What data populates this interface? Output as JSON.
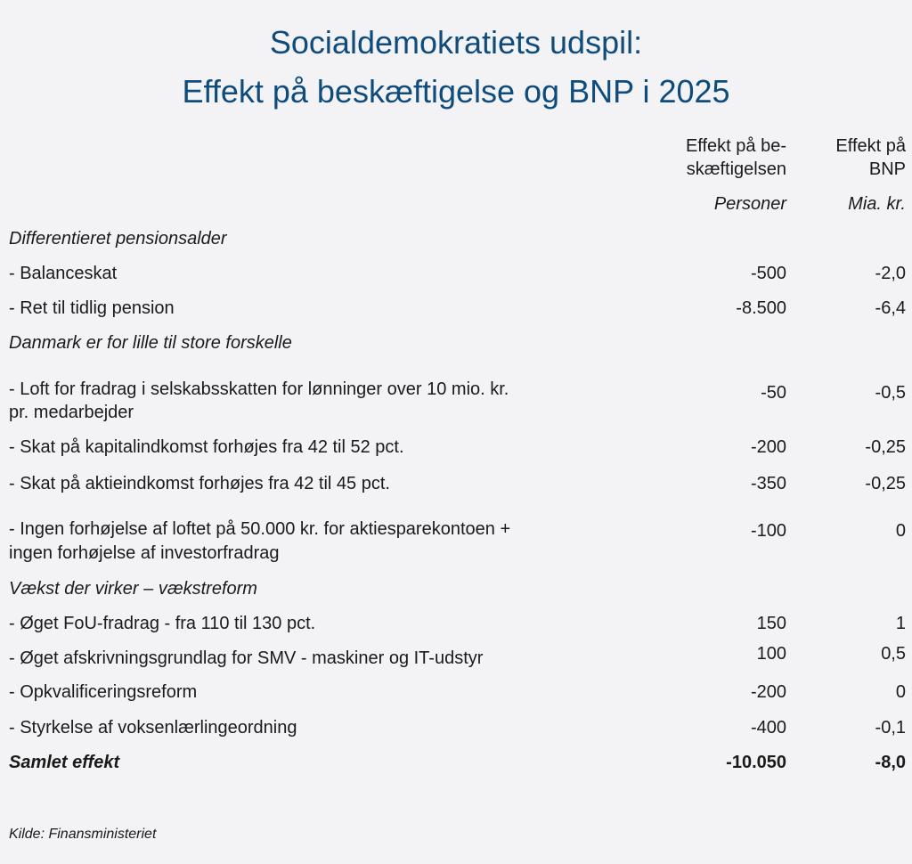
{
  "title": [
    "Socialdemokratiets udspil:",
    "Effekt på beskæftigelse og BNP i 2025"
  ],
  "columns": [
    {
      "header": [
        "Effekt på be-",
        "skæftigelsen"
      ],
      "unit": "Personer"
    },
    {
      "header": [
        "Effekt på",
        "BNP"
      ],
      "unit": "Mia. kr."
    }
  ],
  "rows": [
    {
      "type": "section",
      "label": [
        "Differentieret pensionsalder"
      ]
    },
    {
      "type": "item",
      "label": [
        "- Balanceskat"
      ],
      "employment": "-500",
      "gdp": "-2,0"
    },
    {
      "type": "item",
      "label": [
        "- Ret til tidlig pension"
      ],
      "employment": "-8.500",
      "gdp": "-6,4"
    },
    {
      "type": "section",
      "label": [
        "Danmark er for lille til store forskelle"
      ]
    },
    {
      "type": "item",
      "label": [
        "- Loft for fradrag i selskabsskatten for lønninger over 10 mio. kr.",
        "pr. medarbejder"
      ],
      "employment": "-50",
      "gdp": "-0,5"
    },
    {
      "type": "item",
      "label": [
        "- Skat på kapitalindkomst forhøjes fra 42 til 52 pct."
      ],
      "employment": "-200",
      "gdp": "-0,25"
    },
    {
      "type": "item",
      "label": [
        "- Skat på aktieindkomst forhøjes fra 42 til 45 pct."
      ],
      "employment": "-350",
      "gdp": "-0,25"
    },
    {
      "type": "item",
      "label": [
        "- Ingen forhøjelse af loftet på 50.000 kr. for aktiesparekontoen +",
        "ingen forhøjelse af investorfradrag"
      ],
      "employment": "-100",
      "gdp": "0"
    },
    {
      "type": "section",
      "label": [
        "Vækst der virker – vækstreform"
      ]
    },
    {
      "type": "item",
      "label": [
        "- Øget FoU-fradrag - fra 110 til 130 pct."
      ],
      "employment": "150",
      "gdp": "1"
    },
    {
      "type": "item",
      "label": [
        "- Øget afskrivningsgrundlag for SMV - maskiner og IT-udstyr"
      ],
      "employment": "100",
      "gdp": "0,5"
    },
    {
      "type": "item",
      "label": [
        "- Opkvalificeringsreform"
      ],
      "employment": "-200",
      "gdp": "0"
    },
    {
      "type": "item",
      "label": [
        "- Styrkelse af voksenlærlingeordning"
      ],
      "employment": "-400",
      "gdp": "-0,1"
    },
    {
      "type": "total",
      "label": [
        "Samlet effekt"
      ],
      "employment": "-10.050",
      "gdp": "-8,0"
    }
  ],
  "source": "Kilde: Finansministeriet",
  "colors": {
    "title": "#0f4c7c",
    "background": "#f3f3f5"
  }
}
